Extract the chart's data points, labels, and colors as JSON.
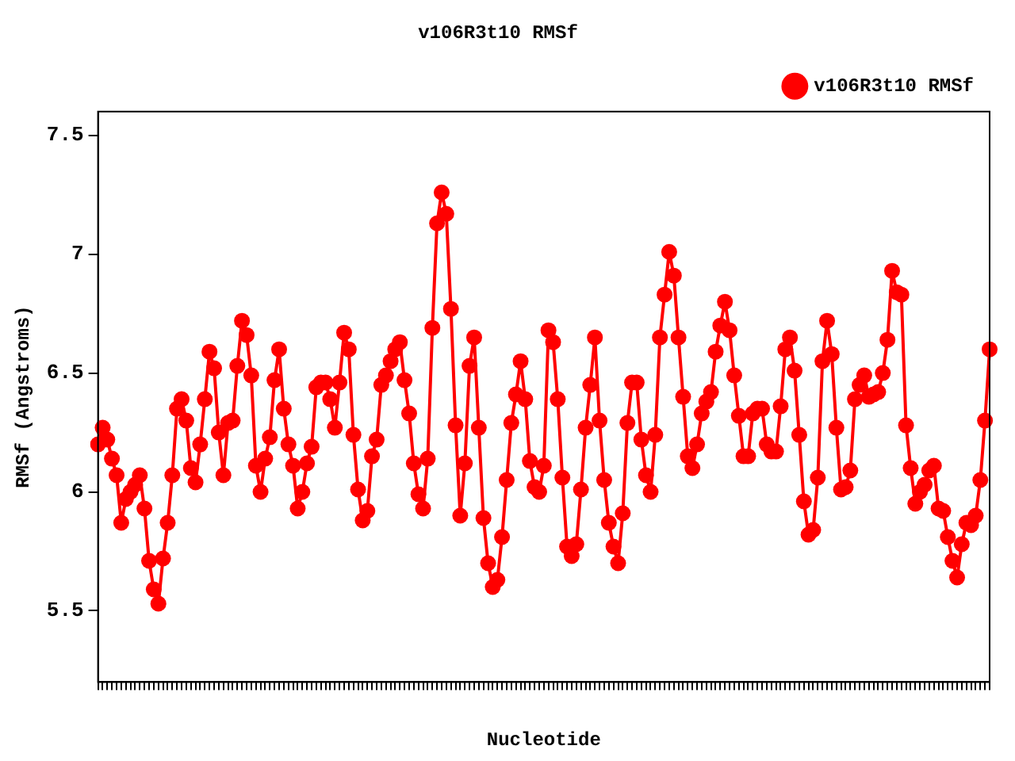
{
  "chart_data": {
    "type": "line",
    "title": "v106R3t10 RMSf",
    "xlabel": "Nucleotide",
    "ylabel": "RMSf (Angstroms)",
    "categories": [
      null,
      null,
      null,
      null,
      null,
      null,
      null,
      null,
      null,
      null,
      null,
      null,
      null,
      null,
      null,
      null,
      null,
      null,
      null,
      null,
      null,
      null,
      null,
      null,
      null,
      null,
      null,
      null,
      null,
      null,
      null,
      null,
      null,
      null,
      null,
      null,
      null,
      null,
      null,
      null,
      null,
      null,
      null,
      null,
      null,
      null,
      null,
      null,
      null,
      null,
      null,
      null,
      null,
      null,
      null,
      null,
      null,
      null,
      null,
      null,
      null,
      null,
      null,
      null,
      null,
      null,
      null,
      null,
      null,
      null,
      null,
      null,
      null,
      null,
      null,
      null,
      null,
      null,
      null,
      null,
      null,
      null,
      null,
      null,
      null,
      null,
      null,
      null,
      null,
      null,
      null,
      null,
      null,
      null,
      null,
      null,
      null,
      null,
      null,
      null,
      null,
      null,
      null,
      null,
      null,
      null,
      null,
      null,
      null,
      null,
      null,
      null,
      null,
      null,
      null,
      null,
      null,
      null,
      null,
      null,
      null,
      null,
      null,
      null,
      null,
      null,
      null,
      null,
      null,
      null,
      null,
      null,
      null,
      null,
      null,
      null,
      null,
      null,
      null,
      null,
      null,
      null,
      null,
      null,
      null,
      null,
      null,
      null,
      null,
      null,
      null,
      null,
      null,
      null,
      null,
      null,
      null,
      null,
      null,
      null,
      null,
      null,
      null,
      null,
      null,
      null,
      null,
      null,
      null,
      null,
      null,
      null,
      null,
      null,
      null,
      null,
      null,
      null,
      null,
      null,
      null,
      null,
      null,
      null,
      null,
      null,
      null,
      null,
      null,
      null,
      null,
      null,
      null
    ],
    "series": [
      {
        "name": "v106R3t10 RMSf",
        "color": "#ff0000",
        "values": [
          6.2,
          6.27,
          6.22,
          6.14,
          6.07,
          5.87,
          5.97,
          6.0,
          6.03,
          6.07,
          5.93,
          5.71,
          5.59,
          5.53,
          5.72,
          5.87,
          6.07,
          6.35,
          6.39,
          6.3,
          6.1,
          6.04,
          6.2,
          6.39,
          6.59,
          6.52,
          6.25,
          6.07,
          6.29,
          6.3,
          6.53,
          6.72,
          6.66,
          6.49,
          6.11,
          6.0,
          6.14,
          6.23,
          6.47,
          6.6,
          6.35,
          6.2,
          6.11,
          5.93,
          6.0,
          6.12,
          6.19,
          6.44,
          6.46,
          6.46,
          6.39,
          6.27,
          6.46,
          6.67,
          6.6,
          6.24,
          6.01,
          5.88,
          5.92,
          6.15,
          6.22,
          6.45,
          6.49,
          6.55,
          6.6,
          6.63,
          6.47,
          6.33,
          6.12,
          5.99,
          5.93,
          6.14,
          6.69,
          7.13,
          7.26,
          7.17,
          6.77,
          6.28,
          5.9,
          6.12,
          6.53,
          6.65,
          6.27,
          5.89,
          5.7,
          5.6,
          5.63,
          5.81,
          6.05,
          6.29,
          6.41,
          6.55,
          6.39,
          6.13,
          6.02,
          6.0,
          6.11,
          6.68,
          6.63,
          6.39,
          6.06,
          5.77,
          5.73,
          5.78,
          6.01,
          6.27,
          6.45,
          6.65,
          6.3,
          6.05,
          5.87,
          5.77,
          5.7,
          5.91,
          6.29,
          6.46,
          6.46,
          6.22,
          6.07,
          6.0,
          6.24,
          6.65,
          6.83,
          7.01,
          6.91,
          6.65,
          6.4,
          6.15,
          6.1,
          6.2,
          6.33,
          6.38,
          6.42,
          6.59,
          6.7,
          6.8,
          6.68,
          6.49,
          6.32,
          6.15,
          6.15,
          6.33,
          6.35,
          6.35,
          6.2,
          6.17,
          6.17,
          6.36,
          6.6,
          6.65,
          6.51,
          6.24,
          5.96,
          5.82,
          5.84,
          6.06,
          6.55,
          6.72,
          6.58,
          6.27,
          6.01,
          6.02,
          6.09,
          6.39,
          6.45,
          6.49,
          6.4,
          6.41,
          6.42,
          6.5,
          6.64,
          6.93,
          6.84,
          6.83,
          6.28,
          6.1,
          5.95,
          6.0,
          6.03,
          6.09,
          6.11,
          5.93,
          5.92,
          5.81,
          5.71,
          5.64,
          5.78,
          5.87,
          5.86,
          5.9,
          6.05,
          6.3,
          6.6
        ]
      }
    ],
    "ylim": [
      5.2,
      7.6
    ],
    "yticks": [
      {
        "value": 5.5,
        "label": "5.5"
      },
      6,
      {
        "value": 6.5,
        "label": "6.5"
      },
      7,
      {
        "value": 7.5,
        "label": "7.5"
      }
    ],
    "grid": false,
    "legend": "top right",
    "marker": "circle",
    "line_style": "solid"
  }
}
